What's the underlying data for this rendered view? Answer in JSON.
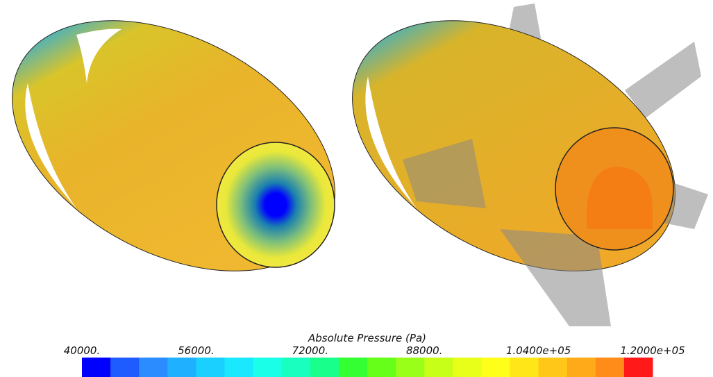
{
  "colorbar": {
    "title": "Absolute Pressure (Pa)",
    "ticks": [
      "40000.",
      "56000.",
      "72000.",
      "88000.",
      "1.0400e+05",
      "1.2000e+05"
    ],
    "colors": [
      "#0000ff",
      "#1e5cff",
      "#2a8cff",
      "#1fb0ff",
      "#19d0ff",
      "#19e8ff",
      "#19ffe8",
      "#19ffc0",
      "#19ff8c",
      "#33ff33",
      "#66ff19",
      "#99ff19",
      "#c8ff19",
      "#e8ff19",
      "#ffff19",
      "#ffe619",
      "#ffc819",
      "#ffaa19",
      "#ff8c19",
      "#ff1919"
    ]
  }
}
